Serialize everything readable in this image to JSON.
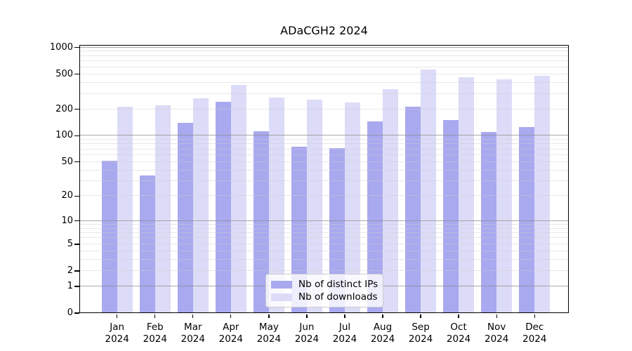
{
  "title": "ADaCGH2 2024",
  "colors": {
    "distinct_ips_bar": "#a9a9f0",
    "downloads_bar": "#dcdcf8",
    "grid_major": "#8c8c8c",
    "grid_minor": "#cdcdcd",
    "axis": "#000000",
    "legend_border": "#cccccc"
  },
  "legend": {
    "items": [
      {
        "label": "Nb of distinct IPs",
        "series": "distinct_ips"
      },
      {
        "label": "Nb of downloads",
        "series": "downloads"
      }
    ]
  },
  "chart_data": {
    "type": "bar",
    "title": "ADaCGH2 2024",
    "categories": [
      "Jan 2024",
      "Feb 2024",
      "Mar 2024",
      "Apr 2024",
      "May 2024",
      "Jun 2024",
      "Jul 2024",
      "Aug 2024",
      "Sep 2024",
      "Oct 2024",
      "Nov 2024",
      "Dec 2024"
    ],
    "month_labels": [
      "Jan",
      "Feb",
      "Mar",
      "Apr",
      "May",
      "Jun",
      "Jul",
      "Aug",
      "Sep",
      "Oct",
      "Nov",
      "Dec"
    ],
    "year_label": "2024",
    "series": [
      {
        "name": "Nb of distinct IPs",
        "color": "#a9a9f0",
        "values": [
          52,
          35,
          140,
          245,
          113,
          75,
          72,
          146,
          215,
          152,
          110,
          125
        ]
      },
      {
        "name": "Nb of downloads",
        "color": "#dcdcf8",
        "values": [
          215,
          222,
          268,
          380,
          272,
          255,
          240,
          335,
          565,
          463,
          436,
          481
        ]
      }
    ],
    "y_axis": {
      "scale": "log10(value+1)",
      "ticks": [
        0,
        1,
        2,
        5,
        10,
        20,
        50,
        100,
        200,
        500,
        1000
      ],
      "ylim": [
        0,
        1070
      ],
      "gridlines": "log minor 1-9 per decade, majors at 1,10,100,1000"
    },
    "xlabel": "",
    "ylabel": "",
    "grid": true,
    "legend_position": "bottom-center"
  }
}
